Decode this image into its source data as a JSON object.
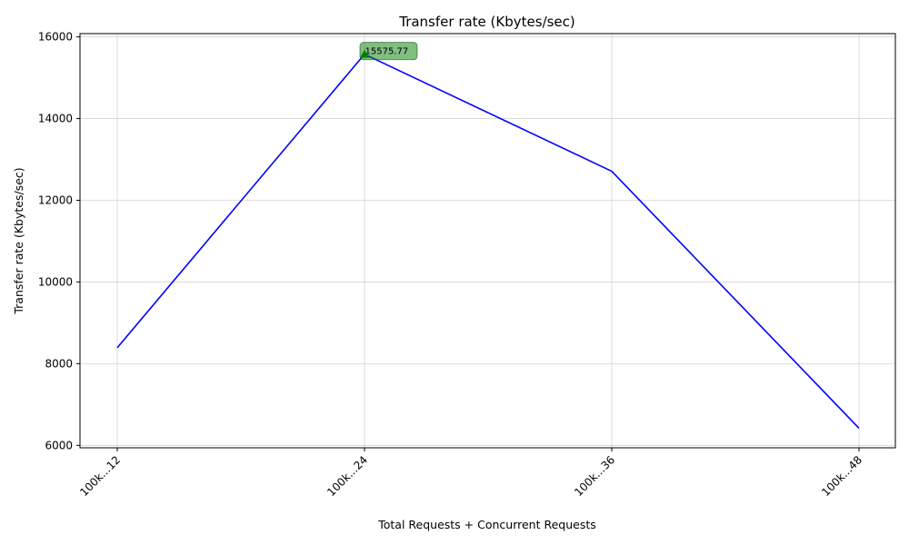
{
  "chart_data": {
    "type": "line",
    "title": "Transfer rate (Kbytes/sec)",
    "xlabel": "Total Requests + Concurrent Requests",
    "ylabel": "Transfer rate (Kbytes/sec)",
    "categories": [
      "100k...12",
      "100k...24",
      "100k...36",
      "100k...48"
    ],
    "series": [
      {
        "values": [
          8390,
          15575.77,
          12710,
          6420
        ],
        "color": "#0000ff"
      }
    ],
    "ylim": [
      5940,
      16080
    ],
    "yticks": [
      6000,
      8000,
      10000,
      12000,
      14000,
      16000
    ],
    "grid": true,
    "annotation": {
      "category_index": 1,
      "value": 15575.77,
      "text": "15575.77",
      "marker": "triangle-up",
      "color": "#008000"
    }
  }
}
